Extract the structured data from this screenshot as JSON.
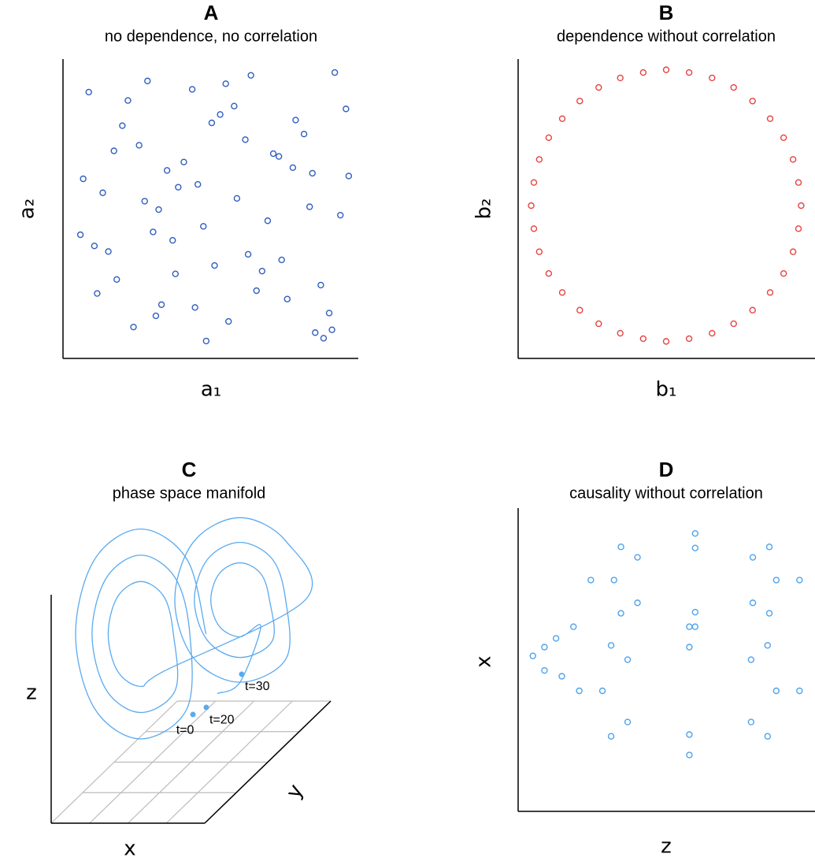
{
  "chart_data": [
    {
      "type": "scatter",
      "title": "A",
      "subtitle": "no dependence, no correlation",
      "x_label": "a₁",
      "y_label": "a₂",
      "color": "#2f5fbf",
      "xlim": [
        0,
        1
      ],
      "ylim": [
        0,
        1
      ],
      "x": [
        0.05,
        0.12,
        0.23,
        0.31,
        0.44,
        0.52,
        0.67,
        0.78,
        0.86,
        0.95,
        0.08,
        0.19,
        0.28,
        0.39,
        0.47,
        0.58,
        0.63,
        0.74,
        0.82,
        0.91,
        0.03,
        0.15,
        0.26,
        0.35,
        0.49,
        0.55,
        0.69,
        0.71,
        0.88,
        0.97,
        0.1,
        0.21,
        0.33,
        0.42,
        0.5,
        0.61,
        0.76,
        0.84,
        0.93,
        0.07,
        0.17,
        0.29,
        0.37,
        0.46,
        0.57,
        0.65,
        0.73,
        0.89,
        0.98,
        0.02,
        0.14,
        0.25,
        0.36,
        0.43,
        0.54,
        0.62,
        0.79,
        0.85,
        0.92,
        0.3
      ],
      "values": [
        0.91,
        0.34,
        0.72,
        0.15,
        0.58,
        0.83,
        0.27,
        0.64,
        0.05,
        0.47,
        0.19,
        0.88,
        0.41,
        0.66,
        0.02,
        0.53,
        0.97,
        0.31,
        0.76,
        0.12,
        0.6,
        0.24,
        0.95,
        0.38,
        0.8,
        0.09,
        0.45,
        0.69,
        0.22,
        0.85,
        0.55,
        0.07,
        0.63,
        0.92,
        0.29,
        0.74,
        0.17,
        0.5,
        0.98,
        0.36,
        0.79,
        0.11,
        0.57,
        0.43,
        0.86,
        0.2,
        0.68,
        0.03,
        0.61,
        0.4,
        0.7,
        0.52,
        0.26,
        0.14,
        0.94,
        0.33,
        0.81,
        0.62,
        0.06,
        0.49
      ]
    },
    {
      "type": "scatter",
      "title": "B",
      "subtitle": "dependence without correlation",
      "x_label": "b₁",
      "y_label": "b₂",
      "color": "#e8423f",
      "xlim": [
        -1.05,
        1.05
      ],
      "ylim": [
        -1.05,
        1.05
      ],
      "x": [
        1,
        0.98,
        0.94,
        0.87,
        0.77,
        0.64,
        0.5,
        0.34,
        0.17,
        0,
        -0.17,
        -0.34,
        -0.5,
        -0.64,
        -0.77,
        -0.87,
        -0.94,
        -0.98,
        -1,
        -0.98,
        -0.94,
        -0.87,
        -0.77,
        -0.64,
        -0.5,
        -0.34,
        -0.17,
        0,
        0.17,
        0.34,
        0.5,
        0.64,
        0.77,
        0.87,
        0.94,
        0.98
      ],
      "values": [
        0,
        0.17,
        0.34,
        0.5,
        0.64,
        0.77,
        0.87,
        0.94,
        0.98,
        1,
        0.98,
        0.94,
        0.87,
        0.77,
        0.64,
        0.5,
        0.34,
        0.17,
        0,
        -0.17,
        -0.34,
        -0.5,
        -0.64,
        -0.77,
        -0.87,
        -0.94,
        -0.98,
        -1,
        -0.98,
        -0.94,
        -0.87,
        -0.77,
        -0.64,
        -0.5,
        -0.34,
        -0.17
      ]
    },
    {
      "type": "line",
      "title": "C",
      "subtitle": "phase space manifold",
      "x_label": "x",
      "y_label": "y",
      "z_label": "z",
      "color": "#5aaaf0",
      "xlim": [
        0,
        100
      ],
      "ylim": [
        0,
        100
      ],
      "x": [
        56,
        49.3,
        33,
        16.7,
        10,
        16.7,
        33,
        49.3,
        50.3,
        45.2,
        33,
        20.8,
        15.8,
        20.8,
        33,
        45.2,
        44.5,
        41.2,
        33,
        24.8,
        21.5,
        24.8,
        33,
        41.2,
        91,
        84.3,
        68,
        51.7,
        45,
        51.7,
        68,
        84.3,
        84.1,
        79.4,
        68,
        56.6,
        51.9,
        56.6,
        68,
        79.4,
        78.4,
        75.3,
        68,
        60.7,
        57.7,
        60.7,
        68,
        75.3,
        68,
        60
      ],
      "values": [
        57,
        83.3,
        94,
        83.3,
        57,
        30.7,
        20,
        30.7,
        57,
        76.7,
        84.8,
        76.7,
        57,
        37.3,
        29.3,
        37.3,
        57,
        70.1,
        75.5,
        70.1,
        57,
        43.9,
        38.5,
        43.9,
        69,
        89.6,
        98,
        89.6,
        69,
        48.4,
        40,
        48.4,
        69,
        83.4,
        89.3,
        83.4,
        69,
        54.6,
        48.7,
        54.6,
        69,
        78.3,
        82.1,
        78.3,
        69,
        59.7,
        56,
        59.7,
        40,
        36
      ],
      "annotations": [
        {
          "text": "t=0",
          "x": 51.4,
          "y": 28.6
        },
        {
          "text": "t=20",
          "x": 56.1,
          "y": 31.1
        },
        {
          "text": "t=30",
          "x": 68.6,
          "y": 42.8
        }
      ]
    },
    {
      "type": "scatter",
      "title": "D",
      "subtitle": "causality without correlation",
      "x_label": "z",
      "y_label": "x",
      "color": "#4da3ee",
      "xlim": [
        0,
        100
      ],
      "ylim": [
        0,
        100
      ],
      "x": [
        96,
        85.6,
        60,
        34.4,
        24,
        34.4,
        60,
        85.6,
        88,
        79.9,
        60,
        40.1,
        32,
        40.1,
        60,
        79.9,
        96,
        85,
        58,
        31,
        20,
        31,
        58,
        85,
        88,
        79.3,
        58,
        36.7,
        28,
        36.7,
        58,
        79.3,
        4,
        8,
        12,
        8,
        14,
        18
      ],
      "values": [
        78,
        89.4,
        94,
        89.4,
        78,
        66.6,
        62,
        66.6,
        78,
        85.8,
        89,
        85.8,
        78,
        70.2,
        67,
        70.2,
        40,
        55.6,
        62,
        55.6,
        40,
        24.4,
        18,
        24.4,
        40,
        50.7,
        55,
        50.7,
        40,
        29.3,
        25,
        29.3,
        52,
        55,
        58,
        47,
        45,
        62
      ]
    }
  ]
}
